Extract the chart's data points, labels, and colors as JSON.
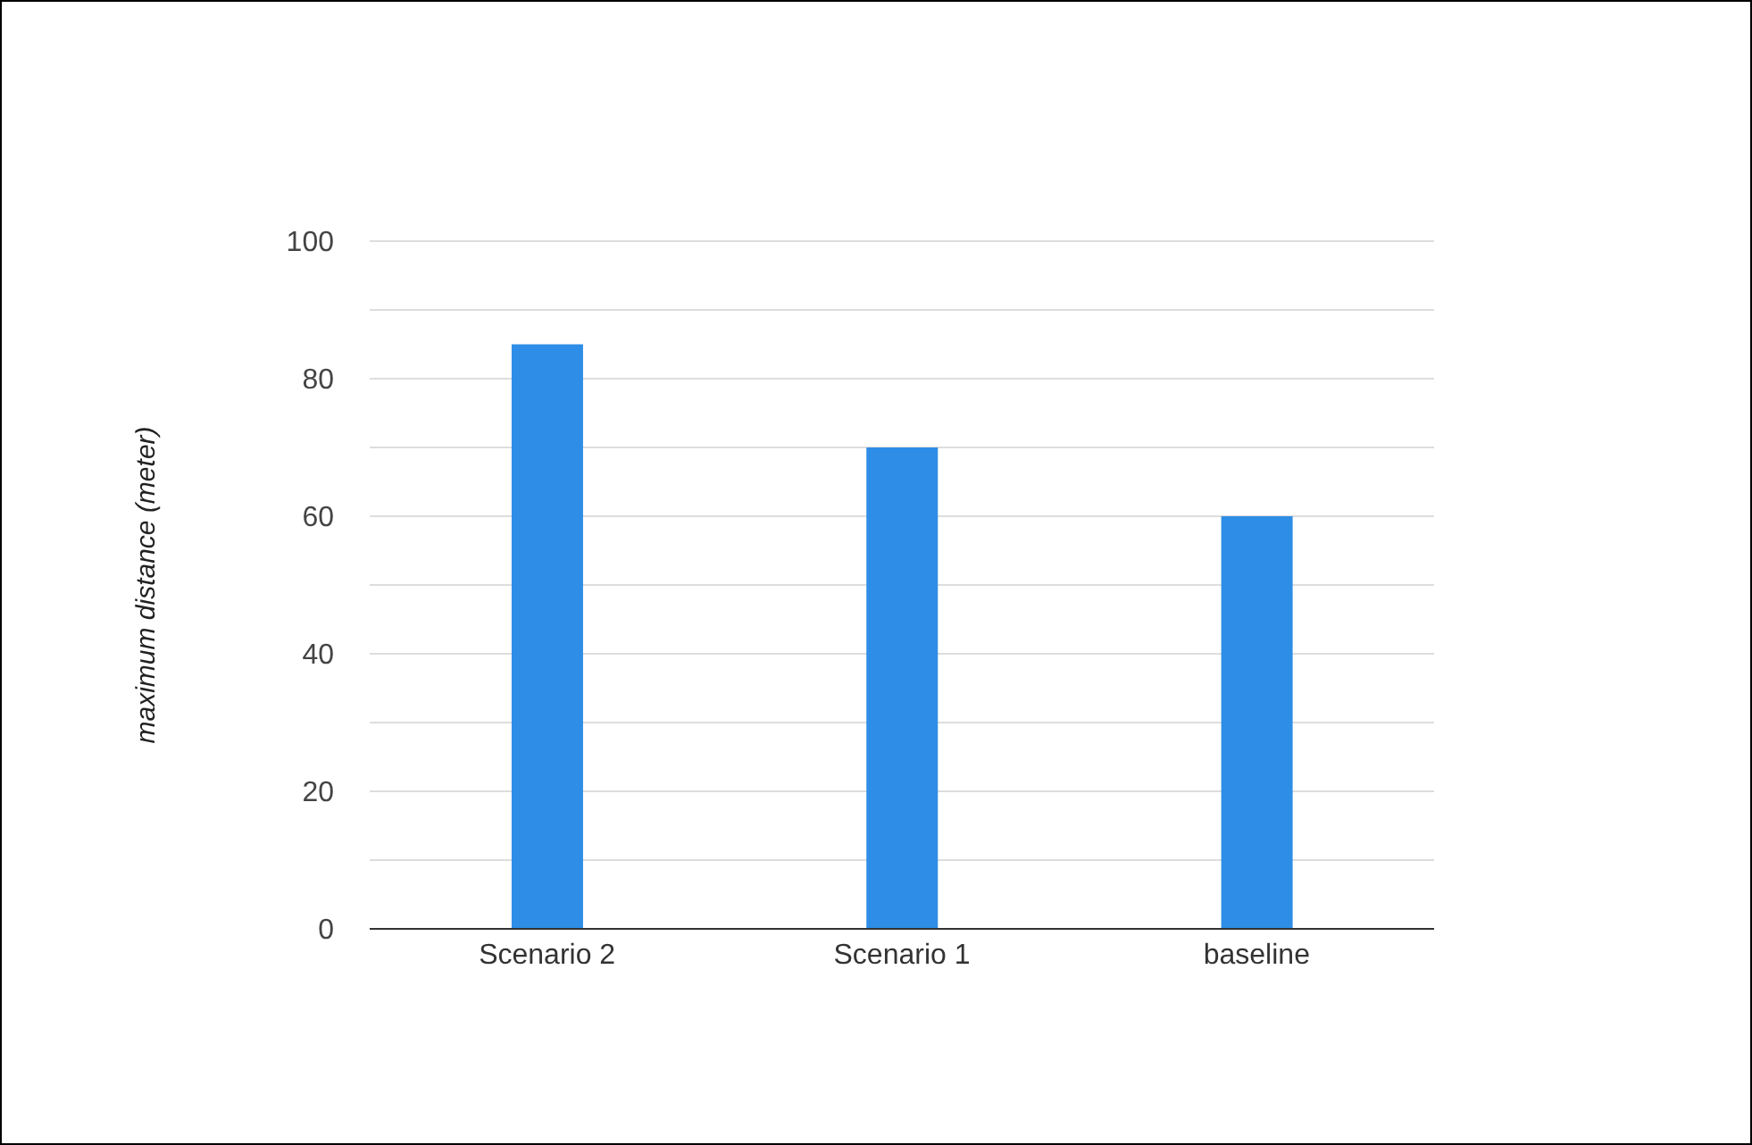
{
  "chart_data": {
    "type": "bar",
    "ylabel": "maximum distance (meter)",
    "categories": [
      "Scenario 2",
      "Scenario 1",
      "baseline"
    ],
    "values": [
      85,
      70,
      60
    ],
    "color": "#2e8de6",
    "ylim": [
      0,
      100
    ],
    "yticks": [
      0,
      {
        "value": 10,
        "label": null
      },
      20,
      {
        "value": 30,
        "label": null
      },
      40,
      {
        "value": 50,
        "label": null
      },
      60,
      {
        "value": 70,
        "label": null
      },
      80,
      {
        "value": 90,
        "label": null
      },
      100
    ],
    "grid": "y",
    "legend": false
  }
}
